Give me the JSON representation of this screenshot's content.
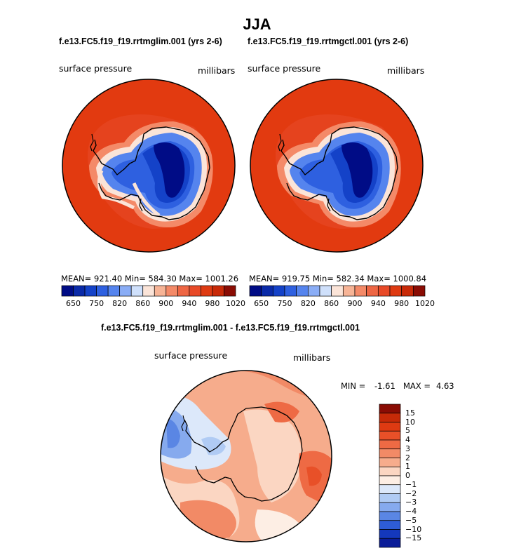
{
  "figure": {
    "title": "JJA",
    "colors": {
      "ocean_red": "#e23a10",
      "land_outline": "#000000"
    }
  },
  "panels": [
    {
      "subtitle": "f.e13.FC5.f19_f19.rrtmglim.001 (yrs 2-6)",
      "variable": "surface pressure",
      "units": "millibars",
      "stats": "MEAN= 921.40   Min= 584.30   Max= 1001.26"
    },
    {
      "subtitle": "f.e13.FC5.f19_f19.rrtmgctl.001 (yrs 2-6)",
      "variable": "surface pressure",
      "units": "millibars",
      "stats": "MEAN= 919.75   Min= 582.34   Max= 1000.84"
    }
  ],
  "colorbar_top": {
    "ticks": [
      "650",
      "750",
      "820",
      "860",
      "900",
      "940",
      "980",
      "1020"
    ],
    "colors": [
      "#000c86",
      "#0a2aa8",
      "#1442c8",
      "#2e60e0",
      "#5584ee",
      "#8aadf6",
      "#cfe0fb",
      "#fbe4d8",
      "#f7b496",
      "#f48a68",
      "#ee6644",
      "#e84a28",
      "#de3a12",
      "#c82a08",
      "#8a0c04"
    ]
  },
  "difference": {
    "subtitle": "f.e13.FC5.f19_f19.rrtmglim.001 - f.e13.FC5.f19_f19.rrtmgctl.001",
    "variable": "surface pressure",
    "units": "millibars",
    "min_label": "MIN =",
    "min_value": "-1.61",
    "max_label": "MAX =",
    "max_value": "4.63"
  },
  "colorbar_diff": {
    "ticks": [
      "15",
      "10",
      "5",
      "4",
      "3",
      "2",
      "1",
      "0",
      "−1",
      "−2",
      "−3",
      "−4",
      "−5",
      "−10",
      "−15"
    ],
    "colors": [
      "#8a0c04",
      "#c62a08",
      "#de3a12",
      "#e85028",
      "#ee6a44",
      "#f28a66",
      "#f6ac8c",
      "#fbd6c2",
      "#fdeee4",
      "#dce8fa",
      "#b0cbf4",
      "#86aaee",
      "#5a86e4",
      "#2e5cd6",
      "#1438bc",
      "#0a1c98"
    ]
  }
}
